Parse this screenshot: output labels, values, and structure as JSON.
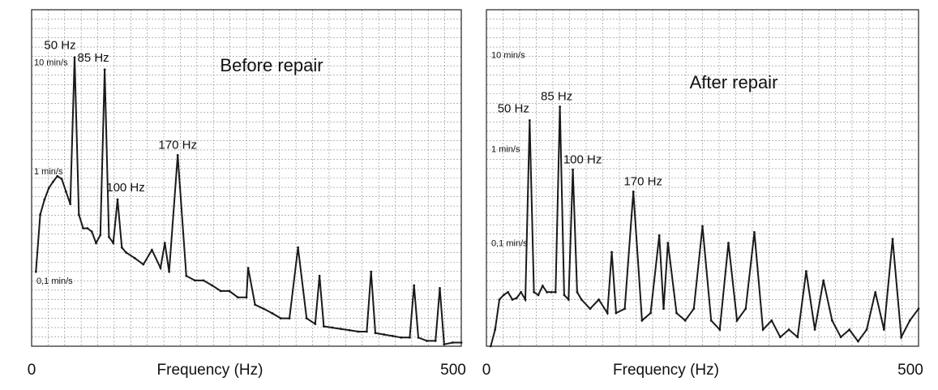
{
  "colors": {
    "trace": "#1a1a1a",
    "grid": "#8a8a8a",
    "frame": "#222222",
    "background": "#ffffff"
  },
  "chart_data": [
    {
      "type": "line",
      "title": "Before repair",
      "xlabel": "Frequency (Hz)",
      "ylabel": "",
      "xlim": [
        0,
        500
      ],
      "x_ticks": [
        "0",
        "500"
      ],
      "y_scale": "log",
      "ylim": [
        0.025,
        30
      ],
      "y_level_labels": [
        {
          "label": "10 min/s",
          "value": 10
        },
        {
          "label": "1 min/s",
          "value": 1
        },
        {
          "label": "0,1 min/s",
          "value": 0.1
        }
      ],
      "grid": true,
      "peak_labels": [
        {
          "label": "50 Hz",
          "x": 50,
          "value": 11
        },
        {
          "label": "85 Hz",
          "x": 85,
          "value": 8.5
        },
        {
          "label": "100 Hz",
          "x": 100,
          "value": 0.55
        },
        {
          "label": "170 Hz",
          "x": 170,
          "value": 1.4
        }
      ],
      "series": [
        {
          "x": [
            5,
            10,
            15,
            20,
            25,
            30,
            35,
            40,
            45,
            50,
            55,
            60,
            65,
            70,
            75,
            80,
            85,
            90,
            95,
            100,
            105,
            110,
            120,
            130,
            140,
            150,
            155,
            160,
            170,
            180,
            190,
            200,
            210,
            220,
            230,
            240,
            250,
            252,
            260,
            270,
            280,
            290,
            300,
            310,
            320,
            330,
            335,
            340,
            350,
            360,
            370,
            380,
            390,
            395,
            400,
            410,
            420,
            430,
            440,
            445,
            450,
            460,
            470,
            475,
            480,
            490,
            500
          ],
          "y": [
            0.12,
            0.4,
            0.55,
            0.7,
            0.8,
            0.9,
            0.85,
            0.65,
            0.5,
            11,
            0.4,
            0.3,
            0.3,
            0.28,
            0.22,
            0.26,
            8.5,
            0.25,
            0.22,
            0.55,
            0.2,
            0.18,
            0.16,
            0.14,
            0.19,
            0.13,
            0.22,
            0.12,
            1.4,
            0.11,
            0.1,
            0.1,
            0.09,
            0.08,
            0.08,
            0.07,
            0.07,
            0.13,
            0.06,
            0.055,
            0.05,
            0.045,
            0.045,
            0.2,
            0.045,
            0.04,
            0.11,
            0.038,
            0.037,
            0.036,
            0.035,
            0.034,
            0.034,
            0.12,
            0.033,
            0.032,
            0.031,
            0.03,
            0.03,
            0.09,
            0.03,
            0.028,
            0.028,
            0.085,
            0.026,
            0.027,
            0.027
          ]
        }
      ]
    },
    {
      "type": "line",
      "title": "After repair",
      "xlabel": "Frequency (Hz)",
      "ylabel": "",
      "xlim": [
        0,
        500
      ],
      "x_ticks": [
        "0",
        "500"
      ],
      "y_scale": "log",
      "ylim": [
        0.008,
        30
      ],
      "y_level_labels": [
        {
          "label": "10 min/s",
          "value": 10
        },
        {
          "label": "1 min/s",
          "value": 1
        },
        {
          "label": "0,1 min/s",
          "value": 0.1
        }
      ],
      "grid": true,
      "peak_labels": [
        {
          "label": "50 Hz",
          "x": 50,
          "value": 2.0
        },
        {
          "label": "85 Hz",
          "x": 85,
          "value": 2.8
        },
        {
          "label": "100 Hz",
          "x": 100,
          "value": 0.6
        },
        {
          "label": "170 Hz",
          "x": 170,
          "value": 0.35
        }
      ],
      "series": [
        {
          "x": [
            5,
            10,
            15,
            20,
            25,
            30,
            35,
            40,
            45,
            50,
            55,
            60,
            65,
            70,
            75,
            80,
            85,
            90,
            95,
            100,
            105,
            110,
            120,
            130,
            140,
            145,
            150,
            160,
            170,
            180,
            190,
            200,
            205,
            210,
            220,
            230,
            240,
            250,
            260,
            270,
            280,
            290,
            300,
            310,
            320,
            330,
            340,
            350,
            360,
            370,
            380,
            390,
            400,
            410,
            420,
            430,
            440,
            450,
            460,
            470,
            480,
            490,
            500
          ],
          "y": [
            0.008,
            0.012,
            0.025,
            0.028,
            0.03,
            0.025,
            0.026,
            0.03,
            0.025,
            2.0,
            0.03,
            0.028,
            0.035,
            0.03,
            0.03,
            0.03,
            2.8,
            0.028,
            0.025,
            0.6,
            0.03,
            0.025,
            0.02,
            0.025,
            0.018,
            0.08,
            0.018,
            0.02,
            0.35,
            0.015,
            0.018,
            0.12,
            0.02,
            0.1,
            0.018,
            0.015,
            0.02,
            0.15,
            0.015,
            0.012,
            0.1,
            0.015,
            0.02,
            0.13,
            0.012,
            0.015,
            0.01,
            0.012,
            0.01,
            0.05,
            0.012,
            0.04,
            0.015,
            0.01,
            0.012,
            0.009,
            0.012,
            0.03,
            0.012,
            0.11,
            0.01,
            0.015,
            0.02
          ]
        }
      ]
    }
  ]
}
